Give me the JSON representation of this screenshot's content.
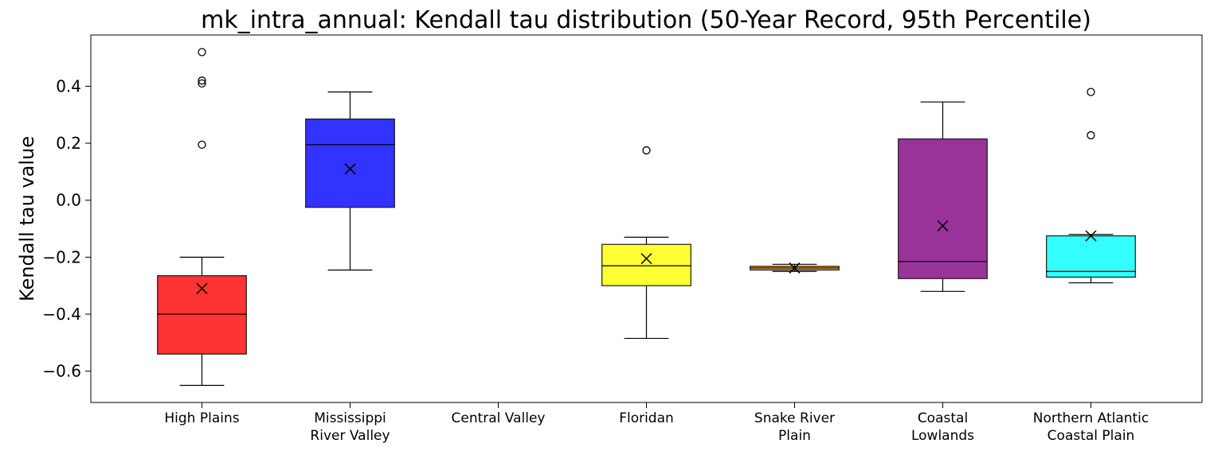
{
  "chart_data": {
    "type": "box",
    "title": "mk_intra_annual: Kendall tau distribution (50-Year Record, 95th Percentile)",
    "xlabel": "",
    "ylabel": "Kendall tau value",
    "ylim": [
      -0.71,
      0.58
    ],
    "yticks": [
      -0.6,
      -0.4,
      -0.2,
      0.0,
      0.2,
      0.4
    ],
    "ytick_labels": [
      "−0.6",
      "−0.4",
      "−0.2",
      "0.0",
      "0.2",
      "0.4"
    ],
    "grid": false,
    "legend": "none",
    "categories": [
      {
        "label_lines": [
          "High Plains"
        ],
        "color": "#ff3333",
        "box": {
          "whislo": -0.65,
          "q1": -0.54,
          "med": -0.4,
          "q3": -0.265,
          "whishi": -0.2,
          "mean": -0.31
        },
        "outliers": [
          0.52,
          0.42,
          0.41,
          0.195
        ]
      },
      {
        "label_lines": [
          "Mississippi",
          "River Valley"
        ],
        "color": "#3333ff",
        "box": {
          "whislo": -0.245,
          "q1": -0.025,
          "med": 0.195,
          "q3": 0.285,
          "whishi": 0.38,
          "mean": 0.11
        },
        "outliers": []
      },
      {
        "label_lines": [
          "Central Valley"
        ],
        "color": "#33cc33",
        "box": null,
        "outliers": []
      },
      {
        "label_lines": [
          "Floridan"
        ],
        "color": "#ffff33",
        "box": {
          "whislo": -0.485,
          "q1": -0.3,
          "med": -0.23,
          "q3": -0.155,
          "whishi": -0.13,
          "mean": -0.205
        },
        "outliers": [
          0.175
        ]
      },
      {
        "label_lines": [
          "Snake River",
          "Plain"
        ],
        "color": "#ffa533",
        "box": {
          "whislo": -0.25,
          "q1": -0.245,
          "med": -0.238,
          "q3": -0.232,
          "whishi": -0.225,
          "mean": -0.238
        },
        "outliers": []
      },
      {
        "label_lines": [
          "Coastal",
          "Lowlands"
        ],
        "color": "#993399",
        "box": {
          "whislo": -0.32,
          "q1": -0.275,
          "med": -0.215,
          "q3": 0.215,
          "whishi": 0.345,
          "mean": -0.09
        },
        "outliers": []
      },
      {
        "label_lines": [
          "Northern Atlantic",
          "Coastal Plain"
        ],
        "color": "#33ffff",
        "box": {
          "whislo": -0.29,
          "q1": -0.27,
          "med": -0.25,
          "q3": -0.125,
          "whishi": -0.12,
          "mean": -0.125
        },
        "outliers": [
          0.38,
          0.228
        ]
      }
    ]
  }
}
